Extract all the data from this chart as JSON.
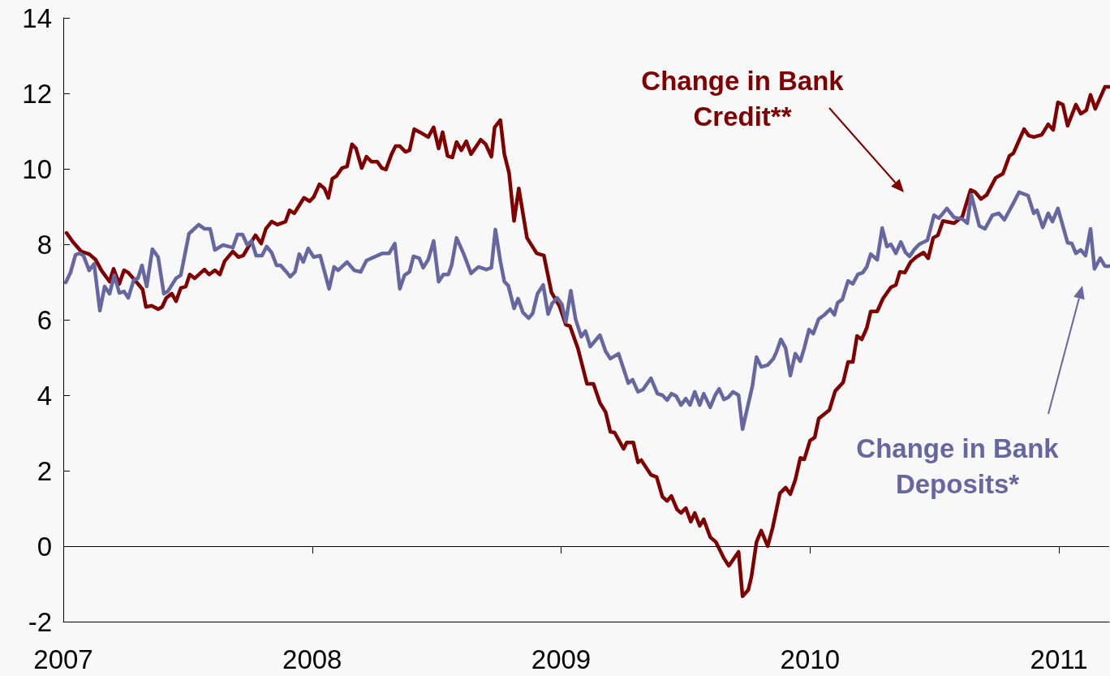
{
  "chart_data": {
    "type": "line",
    "xlim": [
      2007,
      2011.202
    ],
    "xticks": [
      2007,
      2008,
      2009,
      2010,
      2011
    ],
    "ylim": [
      -2,
      14
    ],
    "yticks": [
      -2,
      0,
      2,
      4,
      6,
      8,
      10,
      12,
      14
    ],
    "grid": false,
    "ref_lines": [
      {
        "axis": "y",
        "value": 0,
        "color": "#000000"
      }
    ],
    "legend": false,
    "marker": "none",
    "line_style": "solid",
    "series": [
      {
        "name": "Change in Bank Credit**",
        "color": "#800000",
        "x": [
          2007.013,
          2007.039,
          2007.072,
          2007.104,
          2007.13,
          2007.153,
          2007.186,
          2007.202,
          2007.225,
          2007.244,
          2007.261,
          2007.3,
          2007.319,
          2007.332,
          2007.355,
          2007.381,
          2007.397,
          2007.414,
          2007.436,
          2007.453,
          2007.472,
          2007.492,
          2007.508,
          2007.528,
          2007.567,
          2007.586,
          2007.609,
          2007.629,
          2007.648,
          2007.681,
          2007.704,
          2007.723,
          2007.746,
          2007.772,
          2007.795,
          2007.814,
          2007.837,
          2007.86,
          2007.893,
          2007.909,
          2007.928,
          2007.967,
          2007.99,
          2008.006,
          2008.029,
          2008.049,
          2008.065,
          2008.081,
          2008.098,
          2008.12,
          2008.14,
          2008.16,
          2008.176,
          2008.199,
          2008.218,
          2008.238,
          2008.261,
          2008.28,
          2008.296,
          2008.319,
          2008.335,
          2008.352,
          2008.375,
          2008.391,
          2008.41,
          2008.433,
          2008.466,
          2008.488,
          2008.508,
          2008.524,
          2008.544,
          2008.563,
          2008.58,
          2008.599,
          2008.619,
          2008.638,
          2008.677,
          2008.697,
          2008.72,
          2008.733,
          2008.756,
          2008.772,
          2008.791,
          2008.811,
          2008.83,
          2008.863,
          2008.902,
          2008.931,
          2008.961,
          2008.993,
          2009.019,
          2009.036,
          2009.068,
          2009.104,
          2009.13,
          2009.156,
          2009.179,
          2009.198,
          2009.215,
          2009.251,
          2009.264,
          2009.29,
          2009.309,
          2009.322,
          2009.361,
          2009.384,
          2009.407,
          2009.426,
          2009.443,
          2009.466,
          2009.482,
          2009.501,
          2009.521,
          2009.537,
          2009.557,
          2009.573,
          2009.599,
          2009.622,
          2009.654,
          2009.674,
          2009.713,
          2009.729,
          2009.752,
          2009.765,
          2009.785,
          2009.804,
          2009.83,
          2009.85,
          2009.879,
          2009.902,
          2009.921,
          2009.941,
          2009.961,
          2009.977,
          2010.0,
          2010.019,
          2010.035,
          2010.078,
          2010.101,
          2010.133,
          2010.153,
          2010.172,
          2010.189,
          2010.208,
          2010.228,
          2010.244,
          2010.27,
          2010.293,
          2010.325,
          2010.345,
          2010.361,
          2010.381,
          2010.404,
          2010.426,
          2010.456,
          2010.475,
          2010.495,
          2010.514,
          2010.534,
          2010.579,
          2010.612,
          2010.645,
          2010.664,
          2010.687,
          2010.71,
          2010.746,
          2010.775,
          2010.801,
          2010.817,
          2010.837,
          2010.86,
          2010.879,
          2010.899,
          2010.931,
          2010.957,
          2010.977,
          2010.996,
          2011.016,
          2011.035,
          2011.068,
          2011.088,
          2011.11,
          2011.127,
          2011.146,
          2011.185,
          2011.202
        ],
        "values": [
          8.3,
          8.06,
          7.81,
          7.74,
          7.59,
          7.31,
          7.01,
          7.35,
          6.95,
          7.31,
          7.25,
          6.95,
          6.8,
          6.34,
          6.37,
          6.28,
          6.34,
          6.58,
          6.69,
          6.49,
          6.84,
          6.88,
          7.2,
          7.1,
          7.33,
          7.2,
          7.31,
          7.2,
          7.55,
          7.81,
          7.66,
          7.7,
          7.96,
          8.24,
          8.02,
          8.41,
          8.6,
          8.52,
          8.6,
          8.9,
          8.82,
          9.23,
          9.14,
          9.25,
          9.59,
          9.48,
          9.23,
          9.74,
          9.81,
          10.02,
          10.06,
          10.65,
          10.54,
          10.02,
          10.32,
          10.19,
          10.19,
          10.02,
          9.98,
          10.39,
          10.6,
          10.6,
          10.45,
          10.49,
          11.05,
          10.97,
          10.84,
          11.1,
          10.54,
          10.97,
          10.34,
          10.3,
          10.71,
          10.49,
          10.73,
          10.39,
          10.77,
          10.65,
          10.32,
          11.1,
          11.29,
          10.39,
          9.89,
          8.62,
          9.48,
          8.17,
          7.76,
          7.7,
          6.73,
          6.37,
          5.87,
          5.83,
          5.23,
          4.3,
          4.3,
          3.8,
          3.55,
          3.03,
          3.01,
          2.58,
          2.75,
          2.75,
          2.22,
          2.28,
          1.89,
          1.83,
          1.31,
          1.2,
          1.33,
          0.97,
          0.88,
          1.01,
          0.65,
          0.88,
          0.54,
          0.71,
          0.24,
          0.11,
          -0.32,
          -0.52,
          -0.15,
          -1.33,
          -1.16,
          -0.8,
          0.11,
          0.41,
          0.0,
          0.49,
          1.4,
          1.55,
          1.38,
          1.76,
          2.34,
          2.3,
          2.8,
          2.88,
          3.38,
          3.61,
          4.11,
          4.34,
          4.88,
          4.88,
          5.57,
          5.48,
          5.78,
          6.22,
          6.22,
          6.56,
          6.86,
          6.92,
          7.27,
          7.25,
          7.53,
          7.66,
          7.78,
          7.63,
          8.17,
          8.24,
          8.62,
          8.56,
          8.73,
          9.44,
          9.38,
          9.2,
          9.31,
          9.76,
          9.87,
          10.34,
          10.41,
          10.71,
          11.05,
          10.88,
          10.84,
          10.9,
          11.18,
          11.03,
          11.76,
          11.7,
          11.14,
          11.7,
          11.46,
          11.55,
          11.96,
          11.59,
          12.17,
          12.17
        ]
      },
      {
        "name": "Change in Bank Deposits*",
        "color": "#6666a0",
        "x": [
          2007.01,
          2007.029,
          2007.049,
          2007.065,
          2007.081,
          2007.104,
          2007.124,
          2007.147,
          2007.166,
          2007.186,
          2007.205,
          2007.225,
          2007.244,
          2007.261,
          2007.283,
          2007.3,
          2007.316,
          2007.335,
          2007.358,
          2007.381,
          2007.404,
          2007.42,
          2007.453,
          2007.472,
          2007.505,
          2007.544,
          2007.567,
          2007.59,
          2007.609,
          2007.642,
          2007.681,
          2007.7,
          2007.72,
          2007.739,
          2007.756,
          2007.775,
          2007.798,
          2007.817,
          2007.837,
          2007.857,
          2007.873,
          2007.896,
          2007.912,
          2007.931,
          2007.948,
          2007.964,
          2007.984,
          2008.006,
          2008.032,
          2008.068,
          2008.088,
          2008.104,
          2008.14,
          2008.169,
          2008.195,
          2008.218,
          2008.238,
          2008.283,
          2008.309,
          2008.332,
          2008.352,
          2008.371,
          2008.391,
          2008.407,
          2008.43,
          2008.446,
          2008.466,
          2008.488,
          2008.508,
          2008.527,
          2008.547,
          2008.56,
          2008.58,
          2008.609,
          2008.638,
          2008.668,
          2008.7,
          2008.72,
          2008.736,
          2008.756,
          2008.772,
          2008.788,
          2008.811,
          2008.827,
          2008.847,
          2008.87,
          2008.886,
          2008.905,
          2008.928,
          2008.948,
          2008.964,
          2008.984,
          2009.003,
          2009.019,
          2009.039,
          2009.058,
          2009.081,
          2009.098,
          2009.117,
          2009.156,
          2009.179,
          2009.198,
          2009.231,
          2009.27,
          2009.287,
          2009.309,
          2009.329,
          2009.361,
          2009.387,
          2009.407,
          2009.426,
          2009.443,
          2009.462,
          2009.482,
          2009.501,
          2009.518,
          2009.537,
          2009.557,
          2009.573,
          2009.599,
          2009.619,
          2009.635,
          2009.654,
          2009.671,
          2009.691,
          2009.713,
          2009.729,
          2009.769,
          2009.785,
          2009.804,
          2009.83,
          2009.853,
          2009.866,
          2009.883,
          2009.902,
          2009.921,
          2009.941,
          2009.961,
          2009.977,
          2009.996,
          2010.013,
          2010.035,
          2010.058,
          2010.081,
          2010.098,
          2010.111,
          2010.13,
          2010.153,
          2010.172,
          2010.192,
          2010.212,
          2010.228,
          2010.244,
          2010.27,
          2010.29,
          2010.309,
          2010.325,
          2010.345,
          2010.365,
          2010.384,
          2010.4,
          2010.42,
          2010.439,
          2010.472,
          2010.498,
          2010.518,
          2010.55,
          2010.579,
          2010.612,
          2010.632,
          2010.648,
          2010.68,
          2010.703,
          2010.733,
          2010.758,
          2010.781,
          2010.814,
          2010.84,
          2010.876,
          2010.899,
          2010.912,
          2010.935,
          2010.957,
          2010.974,
          2010.996,
          2011.035,
          2011.052,
          2011.068,
          2011.088,
          2011.107,
          2011.127,
          2011.143,
          2011.166,
          2011.185,
          2011.202
        ],
        "values": [
          6.99,
          7.25,
          7.72,
          7.76,
          7.7,
          7.31,
          7.48,
          6.24,
          6.88,
          6.69,
          7.18,
          6.71,
          6.75,
          6.58,
          7.05,
          7.1,
          7.44,
          6.88,
          7.87,
          7.66,
          6.69,
          6.75,
          7.1,
          7.18,
          8.28,
          8.52,
          8.41,
          8.41,
          7.85,
          7.98,
          7.91,
          8.26,
          8.26,
          7.98,
          8.09,
          7.7,
          7.7,
          7.94,
          7.78,
          7.44,
          7.44,
          7.27,
          7.14,
          7.27,
          7.74,
          7.53,
          7.89,
          7.66,
          7.7,
          6.82,
          7.4,
          7.31,
          7.53,
          7.31,
          7.27,
          7.57,
          7.63,
          7.76,
          7.76,
          8.02,
          6.82,
          7.18,
          7.27,
          7.68,
          7.63,
          7.38,
          7.59,
          8.09,
          7.01,
          7.2,
          7.2,
          7.44,
          8.17,
          7.74,
          7.23,
          7.4,
          7.33,
          7.38,
          8.39,
          7.55,
          7.01,
          6.9,
          6.3,
          6.56,
          6.19,
          6.04,
          6.17,
          6.69,
          6.92,
          6.15,
          6.43,
          6.58,
          6.41,
          5.94,
          6.77,
          6.02,
          5.55,
          5.7,
          5.29,
          5.59,
          5.16,
          4.97,
          5.1,
          4.32,
          4.41,
          4.09,
          4.15,
          4.45,
          4.04,
          4.0,
          3.87,
          4.04,
          3.98,
          3.74,
          3.91,
          3.74,
          4.09,
          3.74,
          4.04,
          3.68,
          4.0,
          4.17,
          3.89,
          3.94,
          4.09,
          4.0,
          3.1,
          4.26,
          5.01,
          4.75,
          4.8,
          4.97,
          5.16,
          5.48,
          5.25,
          4.52,
          5.1,
          4.9,
          5.25,
          5.74,
          5.63,
          6.02,
          6.13,
          6.28,
          6.13,
          6.45,
          6.54,
          7.03,
          6.95,
          7.2,
          7.25,
          7.4,
          7.74,
          7.59,
          8.43,
          7.94,
          8.0,
          7.76,
          8.06,
          7.78,
          7.68,
          7.87,
          8.0,
          8.11,
          8.77,
          8.69,
          8.95,
          8.71,
          8.67,
          8.56,
          9.31,
          8.49,
          8.41,
          8.77,
          8.82,
          8.65,
          9.05,
          9.38,
          9.29,
          8.82,
          8.9,
          8.45,
          8.82,
          8.6,
          8.95,
          8.04,
          8.02,
          7.76,
          7.85,
          7.7,
          8.41,
          7.35,
          7.63,
          7.42,
          7.42
        ]
      }
    ]
  }
}
